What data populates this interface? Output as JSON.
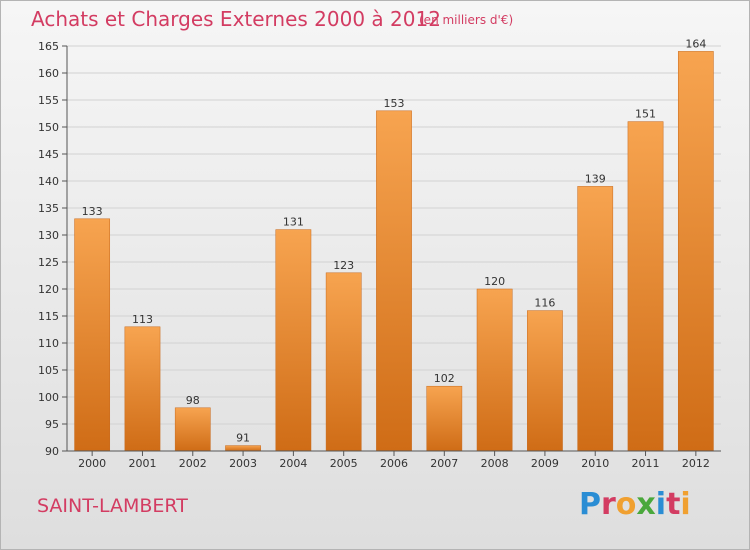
{
  "title": "Achats et Charges Externes 2000 à 2012",
  "subtitle": "(en milliers d'€)",
  "commune": "SAINT-LAMBERT",
  "brand": "Proxiti",
  "colors": {
    "title": "#d33c62",
    "bar_top": "#f7a450",
    "bar_bottom": "#cf6c16",
    "grid": "#d2d2d2",
    "axis": "#555555",
    "label": "#333333"
  },
  "chart_data": {
    "type": "bar",
    "title": "Achats et Charges Externes 2000 à 2012",
    "xlabel": "",
    "ylabel": "",
    "ylim": [
      90,
      165
    ],
    "ytick_step": 5,
    "grid": true,
    "categories": [
      "2000",
      "2001",
      "2002",
      "2003",
      "2004",
      "2005",
      "2006",
      "2007",
      "2008",
      "2009",
      "2010",
      "2011",
      "2012"
    ],
    "values": [
      133,
      113,
      98,
      91,
      131,
      123,
      153,
      102,
      120,
      116,
      139,
      151,
      164
    ]
  }
}
